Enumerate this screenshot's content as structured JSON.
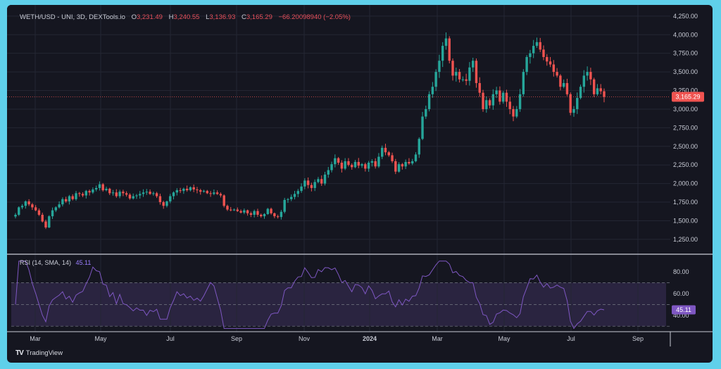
{
  "header": {
    "symbol": "WETH/USD - UNI, 3D, DEXTools.io",
    "o_label": "O",
    "o_value": "3,231.49",
    "h_label": "H",
    "h_value": "3,240.55",
    "l_label": "L",
    "l_value": "3,136.93",
    "c_label": "C",
    "c_value": "3,165.29",
    "change": "−66.20098940 (−2.05%)"
  },
  "price_badge": "3,165.29",
  "rsi": {
    "label": "RSI (14, SMA, 14)",
    "value": "45.11",
    "badge": "45.11"
  },
  "branding": {
    "logo": "TV",
    "name": "TradingView"
  },
  "colors": {
    "background": "#151620",
    "up": "#26a69a",
    "down": "#ef5350",
    "rsi_line": "#7e57c2",
    "rsi_band": "#2a2440",
    "price_line": "#ef5350"
  },
  "chart_data": [
    {
      "type": "candlestick",
      "title": "WETH/USD - UNI, 3D, DEXTools.io",
      "ylim": [
        1050,
        4400
      ],
      "y_ticks": [
        1250,
        1500,
        1750,
        2000,
        2250,
        2500,
        2750,
        3000,
        3250,
        3500,
        3750,
        4000,
        4250
      ],
      "y_tick_labels": [
        "1,250.00",
        "1,500.00",
        "1,750.00",
        "2,000.00",
        "2,250.00",
        "2,500.00",
        "2,750.00",
        "3,000.00",
        "3,250.00",
        "3,500.00",
        "3,750.00",
        "4,000.00",
        "4,250.00"
      ],
      "x_tick_labels": [
        "Mar",
        "May",
        "Jul",
        "Sep",
        "Nov",
        "2024",
        "Mar",
        "May",
        "Jul",
        "Sep"
      ],
      "current_price": 3165.29,
      "close": [
        1580,
        1680,
        1700,
        1760,
        1720,
        1680,
        1640,
        1580,
        1490,
        1410,
        1560,
        1640,
        1680,
        1720,
        1790,
        1760,
        1830,
        1790,
        1870,
        1860,
        1840,
        1900,
        1880,
        1920,
        1940,
        1990,
        1910,
        1930,
        1870,
        1880,
        1830,
        1890,
        1870,
        1850,
        1800,
        1830,
        1840,
        1860,
        1880,
        1890,
        1860,
        1870,
        1830,
        1750,
        1700,
        1760,
        1830,
        1880,
        1910,
        1900,
        1930,
        1910,
        1950,
        1920,
        1910,
        1890,
        1900,
        1870,
        1860,
        1880,
        1860,
        1840,
        1700,
        1650,
        1640,
        1650,
        1630,
        1610,
        1640,
        1600,
        1580,
        1630,
        1580,
        1560,
        1590,
        1660,
        1600,
        1560,
        1550,
        1620,
        1780,
        1790,
        1820,
        1860,
        1900,
        1960,
        2040,
        1980,
        1940,
        2020,
        2060,
        2000,
        2120,
        2180,
        2260,
        2340,
        2280,
        2200,
        2300,
        2250,
        2220,
        2290,
        2240,
        2260,
        2200,
        2280,
        2300,
        2230,
        2360,
        2480,
        2420,
        2380,
        2300,
        2160,
        2260,
        2230,
        2290,
        2270,
        2300,
        2390,
        2600,
        2900,
        3000,
        3200,
        3300,
        3500,
        3650,
        3850,
        3950,
        3650,
        3450,
        3500,
        3400,
        3400,
        3380,
        3560,
        3650,
        3350,
        3220,
        3000,
        3120,
        3050,
        3200,
        3250,
        3100,
        3220,
        3100,
        3000,
        2900,
        3000,
        3200,
        3500,
        3700,
        3750,
        3850,
        3900,
        3800,
        3700,
        3640,
        3600,
        3500,
        3450,
        3300,
        3350,
        3200,
        2950,
        3000,
        3150,
        3300,
        3450,
        3500,
        3400,
        3200,
        3280,
        3240,
        3165.29
      ],
      "rsi_ylim": [
        25,
        95
      ],
      "rsi_ticks": [
        40,
        60,
        80
      ],
      "rsi_tick_labels": [
        "40.00",
        "60.00",
        "80.00"
      ],
      "rsi_bands": [
        30,
        50,
        70
      ],
      "rsi_current": 45.11
    }
  ]
}
